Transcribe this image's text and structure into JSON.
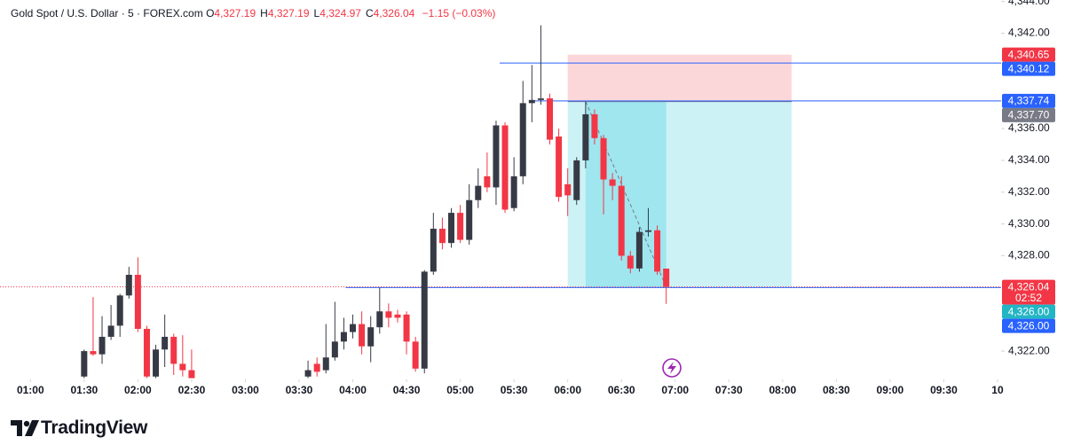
{
  "chart_data": {
    "type": "candlestick",
    "title": "Gold Spot / U.S. Dollar · 5 · FOREX.com",
    "ohlc": [
      {
        "key": "O",
        "text": "4,327.19"
      },
      {
        "key": "H",
        "text": "4,327.19"
      },
      {
        "key": "L",
        "text": "4,324.97"
      },
      {
        "key": "C",
        "text": "4,326.04"
      }
    ],
    "change": "−1.15 (−0.03%)",
    "up_color": "#363a45",
    "down_color": "#f23645",
    "candles": [
      {
        "t": "01:30",
        "o": 4320.4,
        "h": 4322.1,
        "l": 4320.3,
        "c": 4322.0
      },
      {
        "t": "01:35",
        "o": 4322.0,
        "h": 4325.4,
        "l": 4321.7,
        "c": 4321.8
      },
      {
        "t": "01:40",
        "o": 4321.8,
        "h": 4324.2,
        "l": 4321.2,
        "c": 4322.9
      },
      {
        "t": "01:45",
        "o": 4322.9,
        "h": 4324.9,
        "l": 4322.7,
        "c": 4323.6
      },
      {
        "t": "01:50",
        "o": 4323.6,
        "h": 4325.6,
        "l": 4322.9,
        "c": 4325.5
      },
      {
        "t": "01:55",
        "o": 4325.5,
        "h": 4327.3,
        "l": 4325.3,
        "c": 4326.8
      },
      {
        "t": "02:00",
        "o": 4326.8,
        "h": 4327.9,
        "l": 4323.2,
        "c": 4323.4
      },
      {
        "t": "02:05",
        "o": 4323.4,
        "h": 4323.6,
        "l": 4320.3,
        "c": 4320.4
      },
      {
        "t": "02:10",
        "o": 4320.4,
        "h": 4322.4,
        "l": 4320.3,
        "c": 4322.1
      },
      {
        "t": "02:15",
        "o": 4322.1,
        "h": 4324.3,
        "l": 4321.0,
        "c": 4322.9
      },
      {
        "t": "02:20",
        "o": 4322.9,
        "h": 4323.1,
        "l": 4320.5,
        "c": 4321.2
      },
      {
        "t": "02:25",
        "o": 4321.2,
        "h": 4323.0,
        "l": 4320.4,
        "c": 4320.8
      },
      {
        "t": "02:30",
        "o": 4320.8,
        "h": 4322.1,
        "l": 4320.3,
        "c": 4320.3
      },
      {
        "t": "03:35",
        "o": 4320.4,
        "h": 4321.4,
        "l": 4320.3,
        "c": 4320.8
      },
      {
        "t": "03:40",
        "o": 4321.2,
        "h": 4321.6,
        "l": 4320.4,
        "c": 4320.7
      },
      {
        "t": "03:45",
        "o": 4320.8,
        "h": 4323.7,
        "l": 4320.6,
        "c": 4321.6
      },
      {
        "t": "03:50",
        "o": 4321.6,
        "h": 4325.1,
        "l": 4321.4,
        "c": 4322.6
      },
      {
        "t": "03:55",
        "o": 4322.6,
        "h": 4324.1,
        "l": 4322.1,
        "c": 4323.2
      },
      {
        "t": "04:00",
        "o": 4323.2,
        "h": 4324.3,
        "l": 4322.8,
        "c": 4323.7
      },
      {
        "t": "04:05",
        "o": 4323.7,
        "h": 4324.5,
        "l": 4321.8,
        "c": 4322.3
      },
      {
        "t": "04:10",
        "o": 4322.3,
        "h": 4324.2,
        "l": 4321.3,
        "c": 4323.5
      },
      {
        "t": "04:15",
        "o": 4323.5,
        "h": 4326.0,
        "l": 4323.1,
        "c": 4324.5
      },
      {
        "t": "04:20",
        "o": 4324.5,
        "h": 4325.0,
        "l": 4323.5,
        "c": 4324.1
      },
      {
        "t": "04:25",
        "o": 4324.3,
        "h": 4324.6,
        "l": 4323.8,
        "c": 4324.1
      },
      {
        "t": "04:30",
        "o": 4324.3,
        "h": 4324.5,
        "l": 4321.8,
        "c": 4322.6
      },
      {
        "t": "04:35",
        "o": 4322.6,
        "h": 4322.9,
        "l": 4320.7,
        "c": 4320.9
      },
      {
        "t": "04:40",
        "o": 4320.9,
        "h": 4327.1,
        "l": 4320.6,
        "c": 4327.0
      },
      {
        "t": "04:45",
        "o": 4327.0,
        "h": 4330.7,
        "l": 4326.8,
        "c": 4329.7
      },
      {
        "t": "04:50",
        "o": 4329.7,
        "h": 4330.4,
        "l": 4328.4,
        "c": 4328.8
      },
      {
        "t": "04:55",
        "o": 4328.8,
        "h": 4331.0,
        "l": 4328.5,
        "c": 4330.7
      },
      {
        "t": "05:00",
        "o": 4330.7,
        "h": 4331.2,
        "l": 4328.8,
        "c": 4329.0
      },
      {
        "t": "05:05",
        "o": 4329.0,
        "h": 4332.5,
        "l": 4328.7,
        "c": 4331.5
      },
      {
        "t": "05:10",
        "o": 4331.5,
        "h": 4333.5,
        "l": 4331.0,
        "c": 4332.4
      },
      {
        "t": "05:15",
        "o": 4333.0,
        "h": 4334.5,
        "l": 4332.0,
        "c": 4332.3
      },
      {
        "t": "05:20",
        "o": 4332.3,
        "h": 4336.5,
        "l": 4331.2,
        "c": 4336.2
      },
      {
        "t": "05:25",
        "o": 4336.2,
        "h": 4336.4,
        "l": 4330.7,
        "c": 4330.9
      },
      {
        "t": "05:30",
        "o": 4331.0,
        "h": 4334.2,
        "l": 4330.8,
        "c": 4333.0
      },
      {
        "t": "05:35",
        "o": 4333.0,
        "h": 4339.0,
        "l": 4332.5,
        "c": 4337.6
      },
      {
        "t": "05:40",
        "o": 4337.6,
        "h": 4340.0,
        "l": 4336.4,
        "c": 4337.8
      },
      {
        "t": "05:45",
        "o": 4337.8,
        "h": 4342.5,
        "l": 4337.5,
        "c": 4337.9
      },
      {
        "t": "05:50",
        "o": 4337.9,
        "h": 4338.2,
        "l": 4335.0,
        "c": 4335.3
      },
      {
        "t": "05:55",
        "o": 4335.5,
        "h": 4336.0,
        "l": 4331.4,
        "c": 4331.7
      },
      {
        "t": "06:00",
        "o": 4332.5,
        "h": 4333.5,
        "l": 4330.5,
        "c": 4331.8
      },
      {
        "t": "06:05",
        "o": 4331.5,
        "h": 4334.2,
        "l": 4331.2,
        "c": 4334.0
      },
      {
        "t": "06:10",
        "o": 4334.0,
        "h": 4337.7,
        "l": 4333.5,
        "c": 4336.9
      },
      {
        "t": "06:15",
        "o": 4336.9,
        "h": 4337.2,
        "l": 4335.0,
        "c": 4335.4
      },
      {
        "t": "06:20",
        "o": 4335.4,
        "h": 4335.6,
        "l": 4330.6,
        "c": 4332.8
      },
      {
        "t": "06:25",
        "o": 4332.8,
        "h": 4333.2,
        "l": 4331.5,
        "c": 4332.4
      },
      {
        "t": "06:30",
        "o": 4332.4,
        "h": 4333.0,
        "l": 4327.7,
        "c": 4328.0
      },
      {
        "t": "06:35",
        "o": 4328.0,
        "h": 4328.3,
        "l": 4326.9,
        "c": 4327.2
      },
      {
        "t": "06:40",
        "o": 4327.2,
        "h": 4329.8,
        "l": 4327.0,
        "c": 4329.5
      },
      {
        "t": "06:45",
        "o": 4329.5,
        "h": 4331.0,
        "l": 4329.2,
        "c": 4329.6
      },
      {
        "t": "06:50",
        "o": 4329.6,
        "h": 4329.9,
        "l": 4326.8,
        "c": 4327.0
      },
      {
        "t": "06:55",
        "o": 4327.19,
        "h": 4327.19,
        "l": 4324.97,
        "c": 4326.04
      }
    ],
    "xlim": [
      "00:43",
      "10:02"
    ],
    "xticks": [
      {
        "value": "01:00",
        "label": "01:00"
      },
      {
        "value": "01:30",
        "label": "01:30"
      },
      {
        "value": "02:00",
        "label": "02:00"
      },
      {
        "value": "02:30",
        "label": "02:30"
      },
      {
        "value": "03:00",
        "label": "03:00"
      },
      {
        "value": "03:30",
        "label": "03:30"
      },
      {
        "value": "04:00",
        "label": "04:00"
      },
      {
        "value": "04:30",
        "label": "04:30"
      },
      {
        "value": "05:00",
        "label": "05:00"
      },
      {
        "value": "05:30",
        "label": "05:30"
      },
      {
        "value": "06:00",
        "label": "06:00"
      },
      {
        "value": "06:30",
        "label": "06:30"
      },
      {
        "value": "07:00",
        "label": "07:00"
      },
      {
        "value": "07:30",
        "label": "07:30"
      },
      {
        "value": "08:00",
        "label": "08:00"
      },
      {
        "value": "08:30",
        "label": "08:30"
      },
      {
        "value": "09:00",
        "label": "09:00"
      },
      {
        "value": "09:30",
        "label": "09:30"
      },
      {
        "value": "10:00",
        "label": "10"
      }
    ],
    "ylim": [
      4320.22,
      4344.09
    ],
    "yticks": [
      {
        "value": 4344,
        "label": "4,344.00"
      },
      {
        "value": 4342,
        "label": "4,342.00"
      },
      {
        "value": 4336,
        "label": "4,336.00"
      },
      {
        "value": 4334,
        "label": "4,334.00"
      },
      {
        "value": 4332,
        "label": "4,332.00"
      },
      {
        "value": 4330,
        "label": "4,330.00"
      },
      {
        "value": 4328,
        "label": "4,328.00"
      },
      {
        "value": 4322,
        "label": "4,322.00"
      }
    ],
    "levels": [
      {
        "value": 4340.12,
        "from": "05:22",
        "color": "#2962ff"
      },
      {
        "value": 4337.74,
        "from": "05:39",
        "color": "#2962ff"
      },
      {
        "value": 4326.0,
        "from": "03:56",
        "color": "#2962ff"
      }
    ],
    "last_price": {
      "value": 4326.04,
      "color": "#f23645"
    },
    "position": {
      "stop": 4340.65,
      "entry": 4337.7,
      "target": 4326.0,
      "start": "06:00",
      "end": "08:05",
      "fill_start": "06:10",
      "fill_end": "06:55"
    },
    "price_labels": [
      {
        "value": 4340.65,
        "label": "4,340.65",
        "color": "#f23645"
      },
      {
        "value": 4340.12,
        "label": "4,340.12",
        "color": "#2962ff"
      },
      {
        "value": 4337.74,
        "label": "4,337.74",
        "color": "#2962ff"
      },
      {
        "value": 4337.7,
        "label": "4,337.70",
        "color": "#787b86"
      },
      {
        "value": 4326.04,
        "label": "4,326.04",
        "color": "#f23645",
        "countdown": "02:52"
      },
      {
        "value": 4326.0,
        "label": "4,326.00",
        "color": "#22b5c4"
      },
      {
        "value": 4326.0,
        "label": "4,326.00",
        "color": "#2962ff"
      }
    ],
    "brand": "TradingView"
  }
}
